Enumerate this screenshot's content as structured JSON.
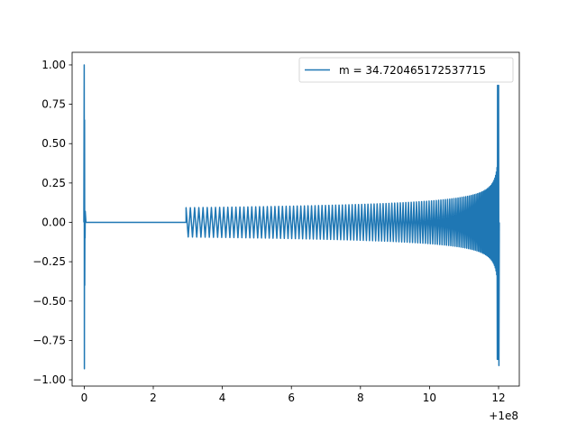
{
  "chart_data": {
    "type": "line",
    "title": "",
    "xlabel": "",
    "ylabel": "",
    "x_offset_label": "+1e8",
    "xlim": [
      -0.35,
      12.6
    ],
    "ylim": [
      -1.04,
      1.08
    ],
    "x_ticks": [
      0,
      2,
      4,
      6,
      8,
      10,
      12
    ],
    "x_tick_labels": [
      "0",
      "2",
      "4",
      "6",
      "8",
      "10",
      "12"
    ],
    "y_ticks": [
      -1.0,
      -0.75,
      -0.5,
      -0.25,
      0.0,
      0.25,
      0.5,
      0.75,
      1.0
    ],
    "y_tick_labels": [
      "−1.00",
      "−0.75",
      "−0.50",
      "−0.25",
      "0.00",
      "0.25",
      "0.50",
      "0.75",
      "1.00"
    ],
    "grid": false,
    "legend": {
      "position": "top-right"
    },
    "series": [
      {
        "name": "m = 34.720465172537715",
        "color": "#1f77b4",
        "description_points": {
          "initial_spike": {
            "x": 0.0,
            "max": 1.0,
            "min": -0.93
          },
          "flat_segment": {
            "x_start": 0.05,
            "x_end": 2.95,
            "y": 0.0
          },
          "oscillation_start": {
            "x": 2.95,
            "amplitude": 0.18
          },
          "amplitude_at_8": 0.22,
          "amplitude_at_10": 0.27,
          "amplitude_at_11": 0.33,
          "final_peak": {
            "x": 12.0,
            "max": 0.87,
            "min": -0.91
          }
        }
      }
    ]
  }
}
